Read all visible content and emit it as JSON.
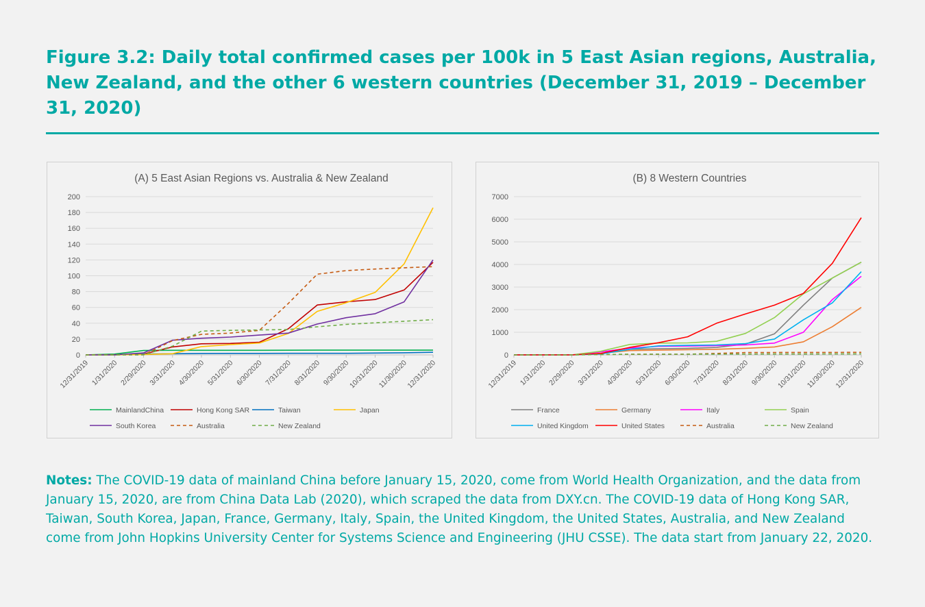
{
  "figure_title": "Figure 3.2: Daily total confirmed cases per 100k in 5 East Asian regions, Australia, New Zealand, and the other 6 western countries (December 31, 2019 – December 31, 2020)",
  "notes": {
    "label": "Notes:",
    "text": "The COVID-19 data of mainland China before January 15, 2020, come from World Health Organization, and the data from January 15, 2020, are from China Data Lab (2020), which scraped the data from DXY.cn. The COVID-19 data of Hong Kong SAR, Taiwan, South Korea, Japan, France, Germany, Italy, Spain, the United Kingdom, the United States, Australia, and New Zealand come from John Hopkins University Center for Systems Science and Engineering (JHU CSSE). The data start from January 22, 2020."
  },
  "colors": {
    "accent": "#00a9a5",
    "background": "#f2f2f2"
  },
  "chart_data": [
    {
      "type": "line",
      "title": "(A) 5 East Asian Regions vs. Australia & New Zealand",
      "xlabel": "",
      "ylabel": "",
      "ylim": [
        0,
        200
      ],
      "yticks": [
        0,
        20,
        40,
        60,
        80,
        100,
        120,
        140,
        160,
        180,
        200
      ],
      "grid": true,
      "legend": "bottom",
      "x": [
        "12/31/2019",
        "1/31/2020",
        "2/29/2020",
        "3/31/2020",
        "4/30/2020",
        "5/31/2020",
        "6/30/2020",
        "7/31/2020",
        "8/31/2020",
        "9/30/2020",
        "10/31/2020",
        "11/30/2020",
        "12/31/2020"
      ],
      "series": [
        {
          "name": "MainlandChina",
          "color": "#00b050",
          "dash": false,
          "values": [
            0,
            1,
            5.5,
            5.8,
            5.8,
            5.8,
            5.8,
            5.9,
            6,
            6,
            6,
            6,
            6
          ]
        },
        {
          "name": "Hong Kong SAR",
          "color": "#c00000",
          "dash": false,
          "values": [
            0,
            0.2,
            1,
            10,
            14,
            14.5,
            16,
            33,
            63,
            67,
            70,
            82,
            117
          ]
        },
        {
          "name": "Taiwan",
          "color": "#0070c0",
          "dash": false,
          "values": [
            0,
            0,
            1,
            1.5,
            1.8,
            1.9,
            1.9,
            2,
            2,
            2,
            2.3,
            2.7,
            3.3
          ]
        },
        {
          "name": "Japan",
          "color": "#ffc000",
          "dash": false,
          "values": [
            0,
            0,
            0.5,
            1.5,
            10.5,
            13,
            15,
            27,
            55,
            66,
            79,
            115,
            186
          ]
        },
        {
          "name": "South Korea",
          "color": "#7030a0",
          "dash": false,
          "values": [
            0,
            0,
            2.5,
            18.5,
            21,
            22.5,
            25,
            27.5,
            39,
            47,
            52,
            67,
            120
          ]
        },
        {
          "name": "Australia",
          "color": "#c55a11",
          "dash": true,
          "values": [
            0,
            0,
            0.1,
            18,
            26,
            27.5,
            31,
            65,
            102,
            106.5,
            108.5,
            110,
            111.5
          ]
        },
        {
          "name": "New Zealand",
          "color": "#70ad47",
          "dash": true,
          "values": [
            0,
            0,
            0,
            11,
            30,
            31,
            31.5,
            32,
            35.5,
            38.5,
            40.5,
            42.5,
            44.5
          ]
        }
      ]
    },
    {
      "type": "line",
      "title": "(B) 8 Western Countries",
      "xlabel": "",
      "ylabel": "",
      "ylim": [
        0,
        7000
      ],
      "yticks": [
        0,
        1000,
        2000,
        3000,
        4000,
        5000,
        6000,
        7000
      ],
      "grid": true,
      "legend": "bottom",
      "x": [
        "12/31/2019",
        "1/31/2020",
        "2/29/2020",
        "3/31/2020",
        "4/30/2020",
        "5/31/2020",
        "6/30/2020",
        "7/31/2020",
        "8/31/2020",
        "9/30/2020",
        "10/31/2020",
        "11/30/2020",
        "12/31/2020"
      ],
      "series": [
        {
          "name": "France",
          "color": "#7f7f7f",
          "dash": false,
          "values": [
            0,
            0,
            0,
            60,
            250,
            270,
            290,
            330,
            480,
            930,
            2200,
            3400,
            4100
          ]
        },
        {
          "name": "Germany",
          "color": "#ed7d31",
          "dash": false,
          "values": [
            0,
            0,
            0,
            70,
            190,
            210,
            230,
            250,
            290,
            350,
            580,
            1250,
            2100
          ]
        },
        {
          "name": "Italy",
          "color": "#ff00ff",
          "dash": false,
          "values": [
            0,
            0,
            0,
            130,
            300,
            380,
            390,
            410,
            440,
            520,
            1000,
            2450,
            3480
          ]
        },
        {
          "name": "Spain",
          "color": "#92d050",
          "dash": false,
          "values": [
            0,
            0,
            0,
            160,
            460,
            520,
            530,
            600,
            950,
            1650,
            2700,
            3400,
            4100
          ]
        },
        {
          "name": "United Kingdom",
          "color": "#00b0f0",
          "dash": false,
          "values": [
            0,
            0,
            0,
            40,
            250,
            400,
            420,
            440,
            500,
            700,
            1550,
            2300,
            3680
          ]
        },
        {
          "name": "United States",
          "color": "#ff0000",
          "dash": false,
          "values": [
            0,
            0,
            0,
            60,
            330,
            540,
            800,
            1400,
            1810,
            2200,
            2720,
            4050,
            6070
          ]
        },
        {
          "name": "Australia",
          "color": "#c55a11",
          "dash": true,
          "values": [
            0,
            0,
            0,
            18,
            26,
            28,
            31,
            65,
            102,
            106,
            108,
            110,
            111
          ]
        },
        {
          "name": "New Zealand",
          "color": "#70ad47",
          "dash": true,
          "values": [
            0,
            0,
            0,
            11,
            30,
            31,
            31.5,
            32,
            35.5,
            38.5,
            40.5,
            42.5,
            44.5
          ]
        }
      ]
    }
  ]
}
